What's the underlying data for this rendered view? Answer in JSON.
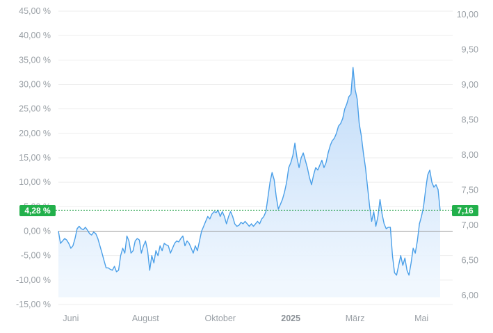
{
  "chart_data": {
    "type": "area",
    "left_axis": {
      "ticks": [
        "45,00 %",
        "40,00 %",
        "35,00 %",
        "30,00 %",
        "25,00 %",
        "20,00 %",
        "15,00 %",
        "10,00 %",
        "5,00 %",
        "0,00 %",
        "-5,00 %",
        "-10,00 %",
        "-15,00 %"
      ],
      "values": [
        45,
        40,
        35,
        30,
        25,
        20,
        15,
        10,
        5,
        0,
        -5,
        -10,
        -15
      ],
      "range": [
        -15,
        45
      ]
    },
    "right_axis": {
      "ticks": [
        "10,00",
        "9,50",
        "9,00",
        "8,50",
        "8,00",
        "7,50",
        "7,00",
        "6,50",
        "6,00"
      ],
      "values": [
        10.0,
        9.5,
        9.0,
        8.5,
        8.0,
        7.5,
        7.0,
        6.5,
        6.0
      ],
      "range": [
        5.87,
        10.05
      ]
    },
    "x_axis": {
      "labels": [
        {
          "text": "Juni",
          "bold": false,
          "index": 6
        },
        {
          "text": "August",
          "bold": false,
          "index": 42
        },
        {
          "text": "Oktober",
          "bold": false,
          "index": 78
        },
        {
          "text": "2025",
          "bold": true,
          "index": 112
        },
        {
          "text": "März",
          "bold": false,
          "index": 143
        },
        {
          "text": "Mai",
          "bold": false,
          "index": 175
        }
      ],
      "count": 185
    },
    "baseline_percent": 0,
    "current": {
      "percent": 4.28,
      "percent_label": "4,28 %",
      "price": 7.16,
      "price_label": "7,16"
    },
    "colors": {
      "line": "#4a9fe8",
      "fill_top": "#b9d7f8",
      "fill_bottom": "#eef6fe",
      "badge": "#22b04b",
      "grid": "#eeeeee"
    },
    "series": [
      {
        "values": [
          0.0,
          -2.5,
          -2.0,
          -1.5,
          -1.8,
          -2.5,
          -3.5,
          -3.0,
          -1.5,
          0.5,
          1.0,
          0.5,
          0.3,
          0.8,
          0.2,
          -0.5,
          -0.8,
          -0.2,
          -0.5,
          -1.5,
          -3.0,
          -4.5,
          -6.0,
          -7.5,
          -7.5,
          -7.8,
          -8.0,
          -7.2,
          -8.3,
          -8.0,
          -5.0,
          -3.5,
          -4.5,
          -1.0,
          -2.0,
          -4.5,
          -4.0,
          -2.0,
          -1.5,
          -1.8,
          -4.5,
          -3.0,
          -2.0,
          -4.0,
          -8.0,
          -5.0,
          -6.5,
          -4.0,
          -5.0,
          -3.0,
          -4.0,
          -2.5,
          -2.8,
          -3.0,
          -4.5,
          -3.5,
          -2.5,
          -2.0,
          -2.2,
          -1.5,
          -1.0,
          -3.0,
          -2.0,
          -2.5,
          -3.5,
          -4.5,
          -3.0,
          -4.0,
          -2.0,
          0.0,
          1.0,
          2.0,
          3.0,
          2.5,
          3.5,
          4.0,
          3.8,
          4.3,
          3.0,
          4.0,
          3.0,
          1.5,
          3.0,
          4.0,
          3.0,
          1.5,
          1.0,
          1.2,
          1.8,
          1.5,
          2.0,
          1.5,
          1.0,
          1.5,
          1.0,
          1.5,
          2.0,
          1.5,
          2.5,
          3.0,
          4.0,
          7.0,
          10.0,
          12.0,
          10.5,
          7.0,
          4.5,
          5.5,
          6.5,
          8.0,
          10.0,
          13.0,
          14.0,
          15.5,
          18.0,
          15.0,
          13.0,
          15.0,
          16.0,
          14.5,
          13.0,
          11.0,
          9.5,
          11.5,
          13.0,
          12.5,
          13.5,
          14.5,
          13.0,
          14.0,
          16.0,
          17.5,
          18.5,
          19.0,
          20.0,
          21.5,
          22.0,
          23.0,
          25.0,
          26.0,
          27.5,
          28.0,
          33.5,
          29.0,
          27.0,
          22.0,
          19.5,
          16.0,
          13.0,
          9.0,
          5.0,
          2.0,
          4.0,
          1.0,
          3.0,
          6.5,
          3.5,
          1.5,
          0.5,
          0.8,
          0.8,
          -5.0,
          -8.5,
          -9.0,
          -7.0,
          -5.0,
          -7.0,
          -5.5,
          -8.0,
          -9.0,
          -6.5,
          -3.5,
          -4.5,
          -2.0,
          1.5,
          3.0,
          5.0,
          8.5,
          11.5,
          12.5,
          10.0,
          9.0,
          9.5,
          8.5,
          4.28
        ]
      }
    ]
  }
}
